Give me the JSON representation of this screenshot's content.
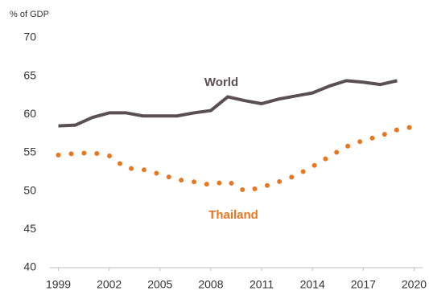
{
  "chart_data": {
    "type": "line",
    "y_axis_label": "% of GDP",
    "x": [
      1999,
      2000,
      2001,
      2002,
      2003,
      2004,
      2005,
      2006,
      2007,
      2008,
      2009,
      2010,
      2011,
      2012,
      2013,
      2014,
      2015,
      2016,
      2017,
      2018,
      2019,
      2020
    ],
    "series": [
      {
        "name": "World",
        "color": "#5a4f52",
        "style": "solid",
        "values": [
          58.5,
          58.6,
          59.6,
          60.2,
          60.2,
          59.8,
          59.8,
          59.8,
          60.2,
          60.5,
          62.3,
          61.8,
          61.4,
          62.0,
          62.4,
          62.8,
          63.7,
          64.4,
          64.2,
          63.9,
          64.4,
          null
        ]
      },
      {
        "name": "Thailand",
        "color": "#e87722",
        "style": "dotted",
        "values": [
          54.7,
          54.9,
          55.0,
          54.6,
          53.0,
          52.8,
          52.2,
          51.5,
          51.2,
          50.8,
          51.3,
          50.0,
          50.5,
          51.2,
          52.0,
          53.2,
          54.5,
          55.8,
          56.6,
          57.2,
          58.0,
          58.4
        ]
      }
    ],
    "xlim": [
      1998.5,
      2020.5
    ],
    "xticks": [
      1999,
      2002,
      2005,
      2008,
      2011,
      2014,
      2017,
      2020
    ],
    "ylim": [
      40,
      70
    ],
    "yticks": [
      40,
      45,
      50,
      55,
      60,
      65,
      70
    ],
    "grid": false
  }
}
